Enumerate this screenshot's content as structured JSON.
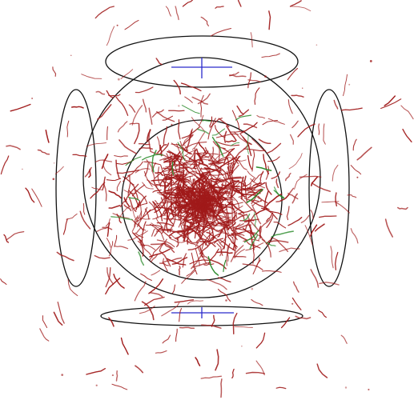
{
  "scene": {
    "background": "#ffffff",
    "outline_color": "#111111",
    "trail_color": "#a01a1a",
    "trail_alt_color": "#2a8a2a",
    "crosshair_color": "#2a2acc",
    "trail_count": 900,
    "satellite_trail_count": 140,
    "green_trail_count": 28,
    "random_seed": 20240607
  }
}
